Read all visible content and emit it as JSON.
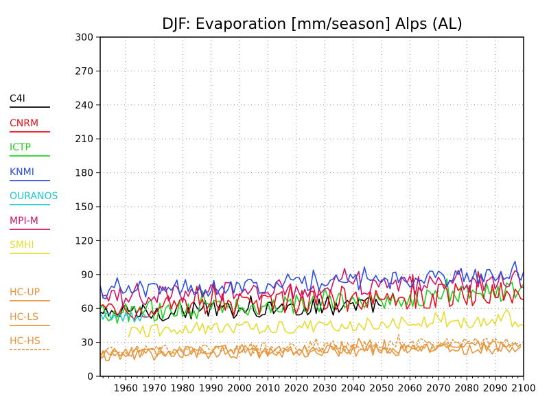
{
  "chart_data": {
    "type": "line",
    "title": "DJF: Evaporation [mm/season] Alps (AL)",
    "xlabel": "",
    "ylabel": "",
    "xlim": [
      1951,
      2100
    ],
    "ylim": [
      0,
      300
    ],
    "x_ticks": [
      "1960",
      "1970",
      "1980",
      "1990",
      "2000",
      "2010",
      "2020",
      "2030",
      "2040",
      "2050",
      "2060",
      "2070",
      "2080",
      "2090",
      "2100"
    ],
    "y_ticks": [
      "0",
      "30",
      "60",
      "90",
      "120",
      "150",
      "180",
      "210",
      "240",
      "270",
      "300"
    ],
    "grid": true,
    "legend_position": "left",
    "series": [
      {
        "name": "C4I",
        "color": "#000000",
        "dashed": false,
        "start": 1951,
        "end": 2050,
        "mean_start": 55,
        "mean_end": 63,
        "amplitude": 8
      },
      {
        "name": "CNRM",
        "color": "#e8101a",
        "dashed": false,
        "start": 1951,
        "end": 2100,
        "mean_start": 58,
        "mean_end": 75,
        "amplitude": 11
      },
      {
        "name": "ICTP",
        "color": "#1ed21e",
        "dashed": false,
        "start": 1951,
        "end": 2100,
        "mean_start": 55,
        "mean_end": 75,
        "amplitude": 9
      },
      {
        "name": "KNMI",
        "color": "#2b4fe0",
        "dashed": false,
        "start": 1951,
        "end": 2100,
        "mean_start": 75,
        "mean_end": 90,
        "amplitude": 8
      },
      {
        "name": "OURANOS",
        "color": "#1ec8c8",
        "dashed": false,
        "start": 1951,
        "end": 1968,
        "mean_start": 52,
        "mean_end": 52,
        "amplitude": 5
      },
      {
        "name": "MPI-M",
        "color": "#d0126c",
        "dashed": false,
        "start": 1951,
        "end": 2100,
        "mean_start": 70,
        "mean_end": 85,
        "amplitude": 9
      },
      {
        "name": "SMHI",
        "color": "#e6dc32",
        "dashed": false,
        "start": 1961,
        "end": 2100,
        "mean_start": 40,
        "mean_end": 50,
        "amplitude": 6
      },
      {
        "name": "HC-UP",
        "color": "#e8963c",
        "dashed": false,
        "start": 1951,
        "end": 2099,
        "mean_start": 18,
        "mean_end": 25,
        "amplitude": 5
      },
      {
        "name": "HC-LS",
        "color": "#e8963c",
        "dashed": false,
        "start": 1951,
        "end": 2099,
        "mean_start": 20,
        "mean_end": 27,
        "amplitude": 5
      },
      {
        "name": "HC-HS",
        "color": "#e8963c",
        "dashed": true,
        "start": 1951,
        "end": 2099,
        "mean_start": 22,
        "mean_end": 30,
        "amplitude": 5
      }
    ]
  }
}
